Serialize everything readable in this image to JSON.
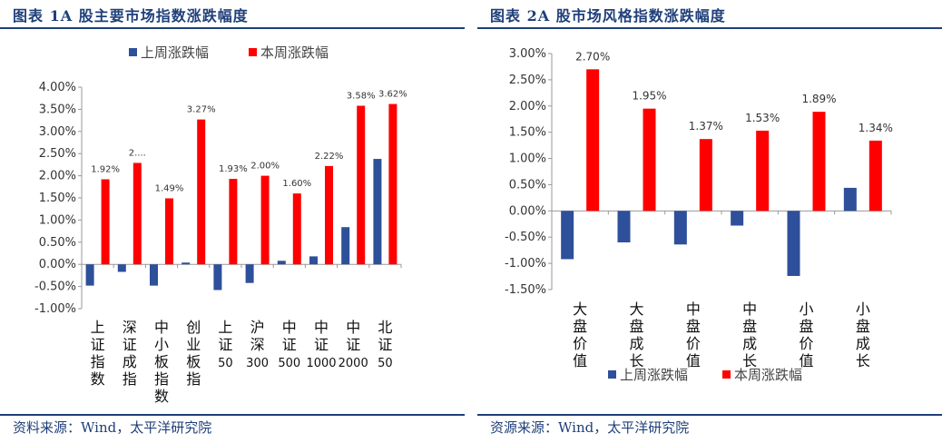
{
  "colors": {
    "last_week": "#2e4f9a",
    "this_week": "#ff0000",
    "brand": "#1f3f7a"
  },
  "left": {
    "title": "图表 1A 股主要市场指数涨跌幅度",
    "source": "资料来源：Wind，太平洋研究院",
    "chart_data": {
      "type": "bar",
      "categories": [
        "上证指数",
        "深证成指",
        "中小板指数",
        "创业板指",
        "上证50",
        "沪深300",
        "中证500",
        "中证1000",
        "中证2000",
        "北证50"
      ],
      "series": [
        {
          "name": "上周涨跌幅",
          "values": [
            -0.48,
            -0.17,
            -0.48,
            0.04,
            -0.58,
            -0.42,
            0.08,
            0.18,
            0.84,
            2.38
          ],
          "labels": []
        },
        {
          "name": "本周涨跌幅",
          "values": [
            1.92,
            2.29,
            1.49,
            3.27,
            1.93,
            2.0,
            1.6,
            2.22,
            3.58,
            3.62
          ],
          "labels": [
            "1.92%",
            "2....",
            "1.49%",
            "3.27%",
            "1.93%",
            "2.00%",
            "1.60%",
            "2.22%",
            "3.58%",
            "3.62%"
          ]
        }
      ],
      "ylim": [
        -1.0,
        4.0
      ],
      "yticks": [
        "-1.00%",
        "-0.50%",
        "0.00%",
        "0.50%",
        "1.00%",
        "1.50%",
        "2.00%",
        "2.50%",
        "3.00%",
        "3.50%",
        "4.00%"
      ],
      "legend": "top"
    }
  },
  "right": {
    "title": "图表 2A 股市场风格指数涨跌幅度",
    "source": "资源来源：Wind，太平洋研究院",
    "chart_data": {
      "type": "bar",
      "categories": [
        "大盘价值",
        "大盘成长",
        "中盘价值",
        "中盘成长",
        "小盘价值",
        "小盘成长"
      ],
      "series": [
        {
          "name": "上周涨跌幅",
          "values": [
            -0.92,
            -0.6,
            -0.64,
            -0.28,
            -1.24,
            0.44
          ],
          "labels": []
        },
        {
          "name": "本周涨跌幅",
          "values": [
            2.7,
            1.95,
            1.37,
            1.53,
            1.89,
            1.34
          ],
          "labels": [
            "2.70%",
            "1.95%",
            "1.37%",
            "1.53%",
            "1.89%",
            "1.34%"
          ]
        }
      ],
      "ylim": [
        -1.5,
        3.0
      ],
      "yticks": [
        "-1.50%",
        "-1.00%",
        "-0.50%",
        "0.00%",
        "0.50%",
        "1.00%",
        "1.50%",
        "2.00%",
        "2.50%",
        "3.00%"
      ],
      "legend": "bottom"
    }
  }
}
